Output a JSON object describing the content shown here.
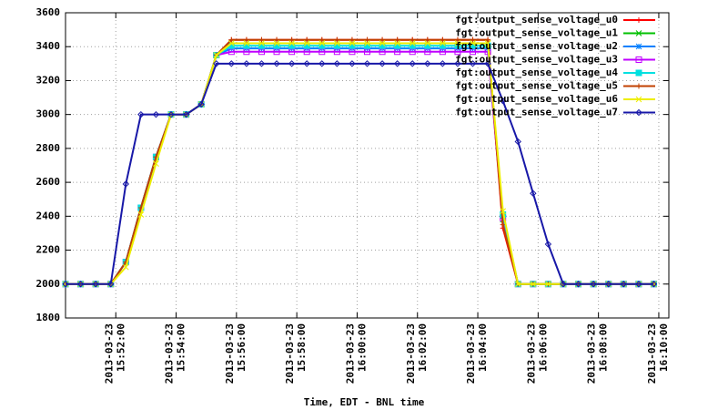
{
  "chart_data": {
    "type": "line",
    "xlabel": "Time, EDT - BNL time",
    "x": [
      "2013-03-23 15:50:20",
      "2013-03-23 15:50:50",
      "2013-03-23 15:51:20",
      "2013-03-23 15:51:50",
      "2013-03-23 15:52:20",
      "2013-03-23 15:52:50",
      "2013-03-23 15:53:20",
      "2013-03-23 15:53:50",
      "2013-03-23 15:54:20",
      "2013-03-23 15:54:50",
      "2013-03-23 15:55:20",
      "2013-03-23 15:55:50",
      "2013-03-23 15:56:20",
      "2013-03-23 15:56:50",
      "2013-03-23 15:57:20",
      "2013-03-23 15:57:50",
      "2013-03-23 15:58:20",
      "2013-03-23 15:58:50",
      "2013-03-23 15:59:20",
      "2013-03-23 15:59:50",
      "2013-03-23 16:00:20",
      "2013-03-23 16:00:50",
      "2013-03-23 16:01:20",
      "2013-03-23 16:01:50",
      "2013-03-23 16:02:20",
      "2013-03-23 16:02:50",
      "2013-03-23 16:03:20",
      "2013-03-23 16:03:50",
      "2013-03-23 16:04:20",
      "2013-03-23 16:04:50",
      "2013-03-23 16:05:20",
      "2013-03-23 16:05:50",
      "2013-03-23 16:06:20",
      "2013-03-23 16:06:50",
      "2013-03-23 16:07:20",
      "2013-03-23 16:07:50",
      "2013-03-23 16:08:20",
      "2013-03-23 16:08:50",
      "2013-03-23 16:09:20",
      "2013-03-23 16:09:50"
    ],
    "xlim": [
      "2013-03-23 15:50:20",
      "2013-03-23 16:10:20"
    ],
    "xticks": [
      "2013-03-23 15:52:00",
      "2013-03-23 15:54:00",
      "2013-03-23 15:56:00",
      "2013-03-23 15:58:00",
      "2013-03-23 16:00:00",
      "2013-03-23 16:02:00",
      "2013-03-23 16:04:00",
      "2013-03-23 16:06:00",
      "2013-03-23 16:08:00",
      "2013-03-23 16:10:00"
    ],
    "ylim": [
      1800,
      3600
    ],
    "yticks": [
      1800,
      2000,
      2200,
      2400,
      2600,
      2800,
      3000,
      3200,
      3400,
      3600
    ],
    "grid": true,
    "legend": "upper right",
    "series": [
      {
        "name": "fgt:output_sense_voltage_u0",
        "color": "#ff0000",
        "marker": "plus",
        "values": [
          2000,
          2000,
          2000,
          2000,
          2130,
          2450,
          2750,
          3000,
          3000,
          3060,
          3350,
          3440,
          3440,
          3440,
          3440,
          3440,
          3440,
          3440,
          3440,
          3440,
          3440,
          3440,
          3440,
          3440,
          3440,
          3440,
          3440,
          3440,
          3440,
          2330,
          2000,
          2000,
          2000,
          2000,
          2000,
          2000,
          2000,
          2000,
          2000,
          2000
        ]
      },
      {
        "name": "fgt:output_sense_voltage_u1",
        "color": "#00c000",
        "marker": "cross",
        "values": [
          2000,
          2000,
          2000,
          2000,
          2130,
          2450,
          2750,
          3000,
          3000,
          3060,
          3350,
          3420,
          3420,
          3420,
          3420,
          3420,
          3420,
          3420,
          3420,
          3420,
          3420,
          3420,
          3420,
          3420,
          3420,
          3420,
          3420,
          3420,
          3420,
          2380,
          2000,
          2000,
          2000,
          2000,
          2000,
          2000,
          2000,
          2000,
          2000,
          2000
        ]
      },
      {
        "name": "fgt:output_sense_voltage_u2",
        "color": "#0080ff",
        "marker": "star",
        "values": [
          2000,
          2000,
          2000,
          2000,
          2130,
          2450,
          2750,
          3000,
          3000,
          3060,
          3350,
          3390,
          3390,
          3390,
          3390,
          3390,
          3390,
          3390,
          3390,
          3390,
          3390,
          3390,
          3390,
          3390,
          3390,
          3390,
          3390,
          3390,
          3390,
          2400,
          2000,
          2000,
          2000,
          2000,
          2000,
          2000,
          2000,
          2000,
          2000,
          2000
        ]
      },
      {
        "name": "fgt:output_sense_voltage_u3",
        "color": "#c000ff",
        "marker": "square",
        "values": [
          2000,
          2000,
          2000,
          2000,
          2130,
          2450,
          2750,
          3000,
          3000,
          3060,
          3350,
          3370,
          3370,
          3370,
          3370,
          3370,
          3370,
          3370,
          3370,
          3370,
          3370,
          3370,
          3370,
          3370,
          3370,
          3370,
          3370,
          3370,
          3370,
          2390,
          2000,
          2000,
          2000,
          2000,
          2000,
          2000,
          2000,
          2000,
          2000,
          2000
        ]
      },
      {
        "name": "fgt:output_sense_voltage_u4",
        "color": "#00e0e0",
        "marker": "filled-square",
        "values": [
          2000,
          2000,
          2000,
          2000,
          2130,
          2450,
          2750,
          3000,
          3000,
          3060,
          3350,
          3405,
          3405,
          3405,
          3405,
          3405,
          3405,
          3405,
          3405,
          3405,
          3405,
          3405,
          3405,
          3405,
          3405,
          3405,
          3405,
          3405,
          3405,
          2410,
          2000,
          2000,
          2000,
          2000,
          2000,
          2000,
          2000,
          2000,
          2000,
          2000
        ]
      },
      {
        "name": "fgt:output_sense_voltage_u5",
        "color": "#c04000",
        "marker": "plus",
        "values": [
          2000,
          2000,
          2000,
          2000,
          2130,
          2450,
          2750,
          3000,
          3000,
          3060,
          3350,
          3440,
          3440,
          3440,
          3440,
          3440,
          3440,
          3440,
          3440,
          3440,
          3440,
          3440,
          3440,
          3440,
          3440,
          3440,
          3440,
          3440,
          3440,
          2350,
          2000,
          2000,
          2000,
          2000,
          2000,
          2000,
          2000,
          2000,
          2000,
          2000
        ]
      },
      {
        "name": "fgt:output_sense_voltage_u6",
        "color": "#eeee00",
        "marker": "cross",
        "values": [
          2000,
          2000,
          2000,
          2000,
          2100,
          2410,
          2710,
          3000,
          3000,
          3060,
          3350,
          3420,
          3420,
          3420,
          3420,
          3420,
          3420,
          3420,
          3420,
          3420,
          3420,
          3420,
          3420,
          3420,
          3420,
          3420,
          3420,
          3420,
          3420,
          2430,
          2000,
          2000,
          2000,
          2000,
          2000,
          2000,
          2000,
          2000,
          2000,
          2000
        ]
      },
      {
        "name": "fgt:output_sense_voltage_u7",
        "color": "#1818a8",
        "marker": "diamond",
        "values": [
          2000,
          2000,
          2000,
          2000,
          2590,
          3000,
          3000,
          3000,
          3000,
          3060,
          3300,
          3300,
          3300,
          3300,
          3300,
          3300,
          3300,
          3300,
          3300,
          3300,
          3300,
          3300,
          3300,
          3300,
          3300,
          3300,
          3300,
          3300,
          3300,
          3080,
          2840,
          2535,
          2235,
          2000,
          2000,
          2000,
          2000,
          2000,
          2000,
          2000
        ]
      }
    ]
  }
}
